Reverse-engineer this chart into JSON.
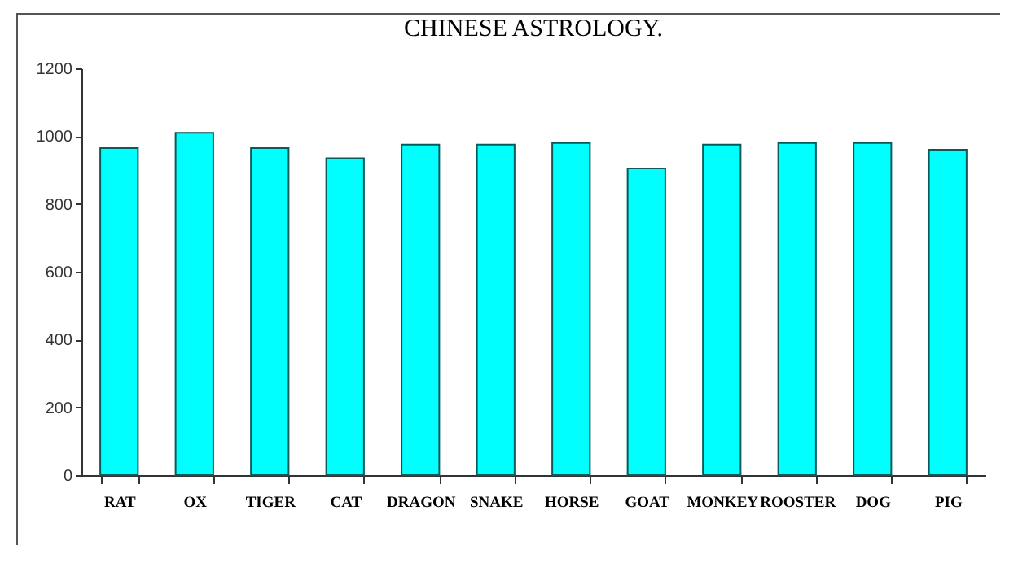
{
  "chart_data": {
    "type": "bar",
    "title": "CHINESE ASTROLOGY.",
    "categories": [
      "RAT",
      "OX",
      "TIGER",
      "CAT",
      "DRAGON",
      "SNAKE",
      "HORSE",
      "GOAT",
      "MONKEY",
      "ROOSTER",
      "DOG",
      "PIG"
    ],
    "values": [
      965,
      1010,
      965,
      935,
      975,
      975,
      980,
      905,
      975,
      980,
      980,
      960
    ],
    "color": "#00ffff",
    "ylim": [
      0,
      1200
    ],
    "yticks": [
      0,
      200,
      400,
      600,
      800,
      1000,
      1200
    ],
    "grid": false
  }
}
